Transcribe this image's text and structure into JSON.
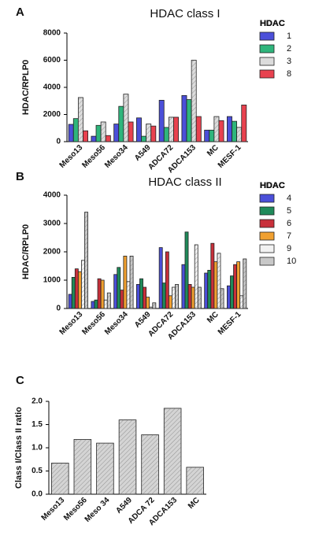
{
  "chart_data": [
    {
      "type": "bar",
      "panel": "A",
      "title": "HDAC class I",
      "ylabel": "HDAC/RPLP0",
      "legend_title": "HDAC",
      "categories": [
        "Meso13",
        "Meso56",
        "Meso34",
        "A549",
        "ADCA72",
        "ADCA153",
        "MC",
        "MESF-1"
      ],
      "series": [
        {
          "name": "1",
          "color": "#4b4fd9",
          "values": [
            1275,
            400,
            1300,
            1750,
            3050,
            3400,
            850,
            1850
          ]
        },
        {
          "name": "2",
          "color": "#2fb57c",
          "values": [
            1700,
            1200,
            2600,
            400,
            1050,
            3100,
            850,
            1500
          ]
        },
        {
          "name": "3",
          "color": "#dcdcdc",
          "values": [
            3250,
            1450,
            3500,
            1300,
            1800,
            6000,
            1850,
            1050
          ]
        },
        {
          "name": "8",
          "color": "#e8424f",
          "values": [
            800,
            450,
            1450,
            1150,
            1800,
            1850,
            1550,
            2700
          ]
        }
      ],
      "ylim": [
        0,
        8000
      ],
      "yticks": [
        0,
        2000,
        4000,
        6000,
        8000
      ]
    },
    {
      "type": "bar",
      "panel": "B",
      "title": "HDAC class II",
      "ylabel": "HDAC/RPLP0",
      "legend_title": "HDAC",
      "categories": [
        "Meso13",
        "Meso56",
        "Meso34",
        "A549",
        "ADCA72",
        "ADCA153",
        "MC",
        "MESF-1"
      ],
      "series": [
        {
          "name": "4",
          "color": "#4b4fd9",
          "values": [
            500,
            250,
            1200,
            850,
            2150,
            1550,
            1250,
            800
          ]
        },
        {
          "name": "5",
          "color": "#1f8a5a",
          "values": [
            1100,
            300,
            1450,
            1050,
            900,
            2700,
            1350,
            1150
          ]
        },
        {
          "name": "6",
          "color": "#c8303a",
          "values": [
            1400,
            1050,
            650,
            750,
            2000,
            850,
            2300,
            1550
          ]
        },
        {
          "name": "7",
          "color": "#f0a030",
          "values": [
            1300,
            1000,
            1850,
            400,
            450,
            750,
            1650,
            1650
          ]
        },
        {
          "name": "9",
          "color": "#f2f2f2",
          "values": [
            1700,
            300,
            950,
            50,
            750,
            2250,
            1950,
            450
          ]
        },
        {
          "name": "10",
          "color": "#c8c8c8",
          "values": [
            3400,
            550,
            1850,
            200,
            850,
            750,
            700,
            1750
          ]
        }
      ],
      "ylim": [
        0,
        4000
      ],
      "yticks": [
        0,
        1000,
        2000,
        3000,
        4000
      ]
    },
    {
      "type": "bar",
      "panel": "C",
      "ylabel": "Class I/Class II ratio",
      "categories": [
        "Meso13",
        "Meso56",
        "Meso 34",
        "A549",
        "ADCA 72",
        "ADCA153",
        "MC"
      ],
      "values": [
        0.67,
        1.18,
        1.1,
        1.6,
        1.28,
        1.85,
        0.58
      ],
      "color": "#d4d4d4",
      "ylim": [
        0,
        2
      ],
      "yticks": [
        {
          "value": 0,
          "label": "0.0"
        },
        0.5,
        {
          "value": 1,
          "label": "1.0"
        },
        1.5,
        {
          "value": 2,
          "label": "2.0"
        }
      ]
    }
  ]
}
